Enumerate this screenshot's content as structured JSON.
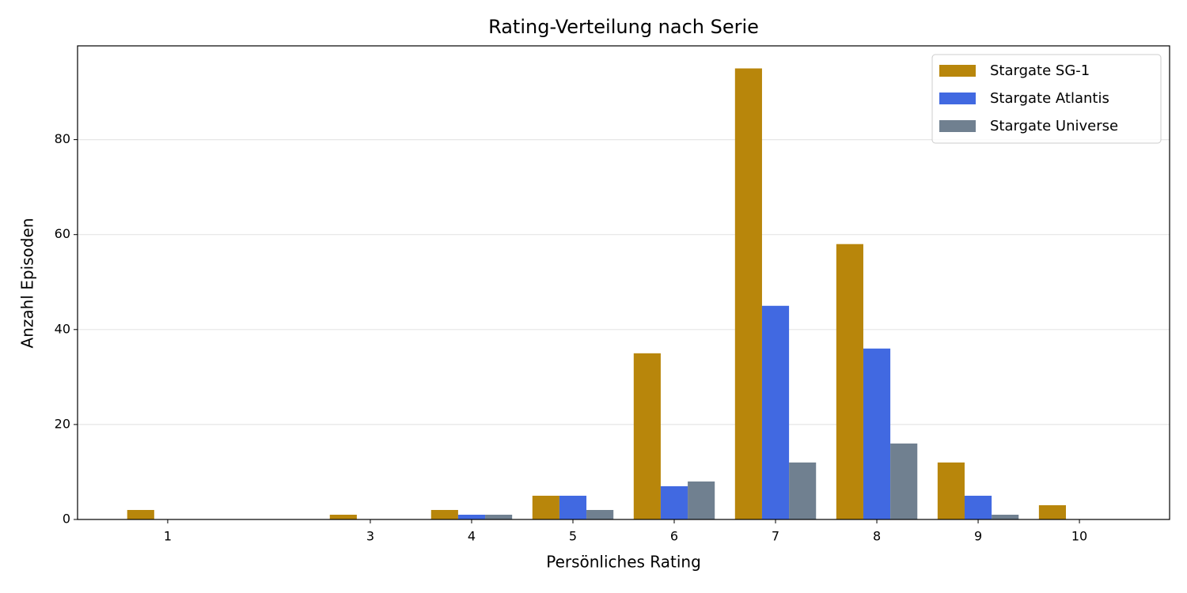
{
  "chart_data": {
    "type": "bar",
    "title": "Rating-Verteilung nach Serie",
    "x_label": "Persönliches Rating",
    "y_label": "Anzahl Episoden",
    "x": [
      1,
      3,
      4,
      5,
      6,
      7,
      8,
      9,
      10
    ],
    "series": [
      {
        "name": "Stargate SG-1",
        "color": "#b8860b",
        "values": [
          2,
          1,
          2,
          5,
          35,
          95,
          58,
          12,
          3
        ]
      },
      {
        "name": "Stargate Atlantis",
        "color": "#4169e1",
        "values": [
          0,
          0,
          1,
          5,
          7,
          45,
          36,
          5,
          0
        ]
      },
      {
        "name": "Stargate Universe",
        "color": "#708090",
        "values": [
          0,
          0,
          1,
          2,
          8,
          12,
          16,
          1,
          0
        ]
      }
    ],
    "xlim": [
      0.11,
      10.89
    ],
    "xticks": [
      1,
      3,
      4,
      5,
      6,
      7,
      8,
      9,
      10
    ],
    "ylim": [
      0,
      99.75
    ],
    "yticks": [
      0,
      20,
      40,
      60,
      80
    ],
    "grid": true,
    "legend": "upper right"
  }
}
